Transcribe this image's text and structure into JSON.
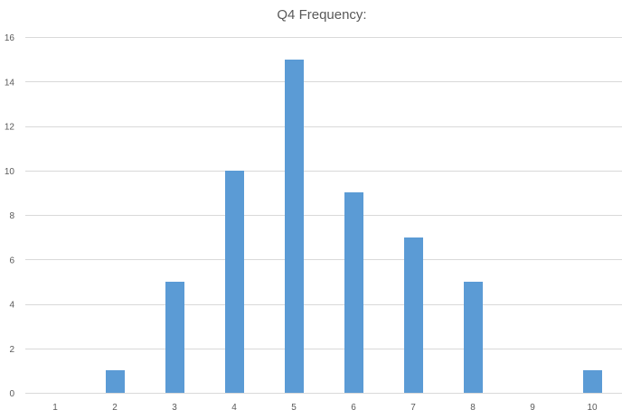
{
  "chart_data": {
    "type": "bar",
    "title": "Q4 Frequency:",
    "xlabel": "",
    "ylabel": "",
    "categories": [
      "1",
      "2",
      "3",
      "4",
      "5",
      "6",
      "7",
      "8",
      "9",
      "10"
    ],
    "series": [
      {
        "values": [
          0,
          1,
          5,
          10,
          15,
          9,
          7,
          5,
          0,
          1
        ],
        "color": "#5b9bd5"
      }
    ],
    "ylim": [
      0,
      16
    ],
    "yticks": [
      "0",
      "2",
      "4",
      "6",
      "8",
      "10",
      "12",
      "14",
      "16"
    ],
    "grid": true,
    "legend": "none"
  }
}
